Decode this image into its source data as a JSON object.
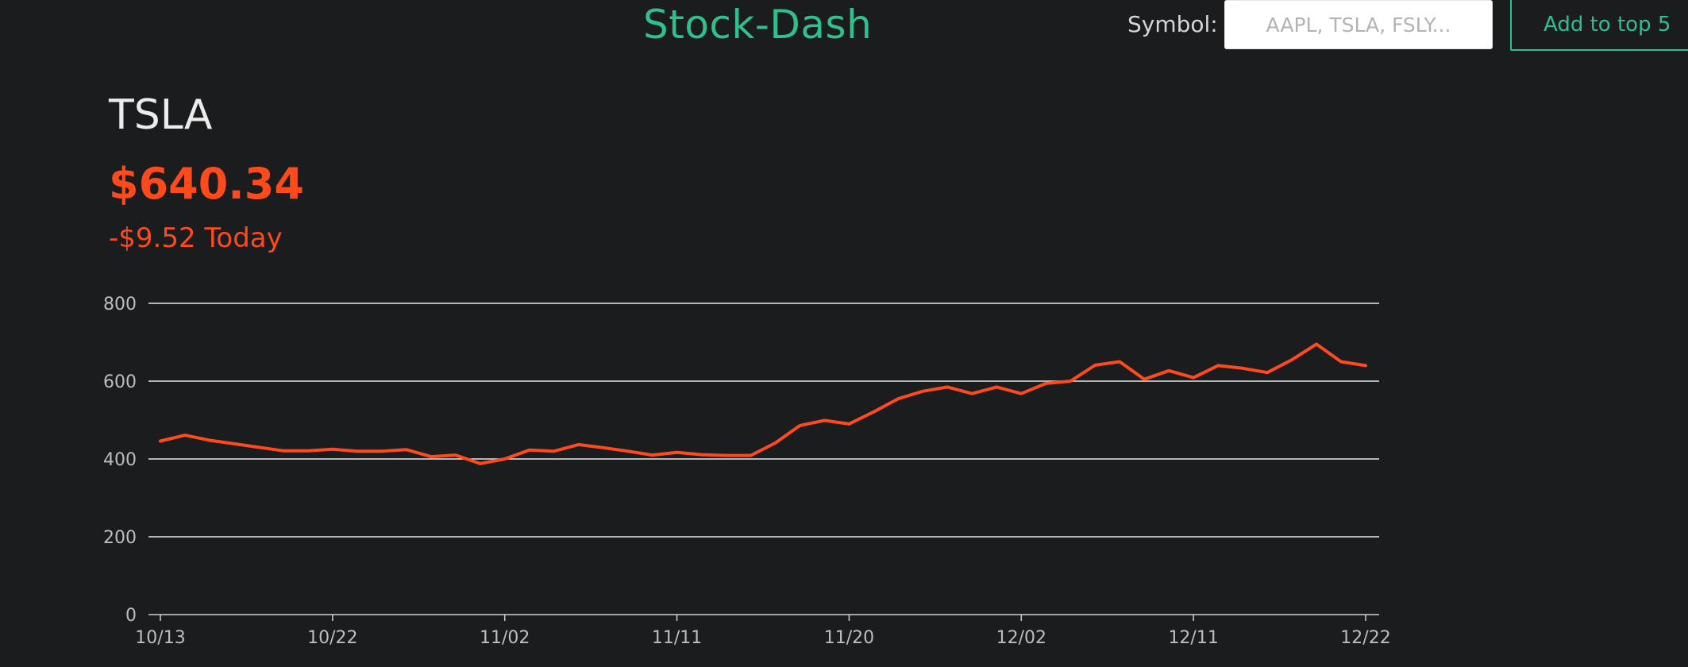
{
  "header": {
    "app_title": "Stock-Dash",
    "symbol_label": "Symbol:",
    "symbol_placeholder": "AAPL, TSLA, FSLY...",
    "add_button_label": "Add to top 5",
    "accent_color": "#2fc08d"
  },
  "stock": {
    "symbol": "TSLA",
    "price": "$640.34",
    "change": "-$9.52 Today",
    "change_color": "#ff4a1c"
  },
  "chart_data": {
    "type": "line",
    "x": [
      "10/13",
      "10/14",
      "10/15",
      "10/16",
      "10/19",
      "10/20",
      "10/21",
      "10/22",
      "10/23",
      "10/26",
      "10/27",
      "10/28",
      "10/29",
      "10/30",
      "11/02",
      "11/03",
      "11/04",
      "11/05",
      "11/06",
      "11/09",
      "11/10",
      "11/11",
      "11/12",
      "11/13",
      "11/16",
      "11/17",
      "11/18",
      "11/19",
      "11/20",
      "11/23",
      "11/24",
      "11/25",
      "11/27",
      "11/30",
      "12/01",
      "12/02",
      "12/03",
      "12/04",
      "12/07",
      "12/08",
      "12/09",
      "12/10",
      "12/11",
      "12/14",
      "12/15",
      "12/16",
      "12/17",
      "12/18",
      "12/21",
      "12/22"
    ],
    "series": [
      {
        "color": "#ff4a1c",
        "values": [
          446,
          461,
          448,
          439,
          430,
          421,
          421,
          425,
          420,
          420,
          424,
          406,
          410,
          388,
          400,
          423,
          420,
          437,
          429,
          420,
          410,
          417,
          411,
          409,
          409,
          441,
          486,
          499,
          490,
          521,
          555,
          574,
          585,
          568,
          585,
          568,
          594,
          600,
          641,
          650,
          605,
          627,
          609,
          640,
          633,
          622,
          655,
          695,
          650,
          640
        ]
      }
    ],
    "xticks": [
      "10/13",
      "10/22",
      "11/02",
      "11/11",
      "11/20",
      "12/02",
      "12/11",
      "12/22"
    ],
    "ylim": [
      0,
      800
    ],
    "yticks": [
      0,
      200,
      400,
      600,
      800
    ],
    "grid": true
  }
}
